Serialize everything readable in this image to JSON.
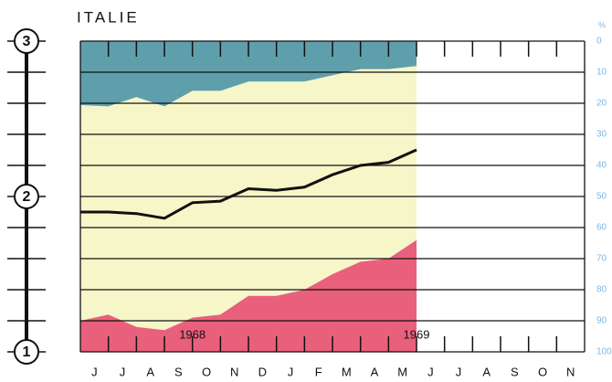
{
  "chart_data": {
    "type": "area",
    "title": "ITALIE",
    "y_unit": "%",
    "categories": [
      "J",
      "J",
      "A",
      "S",
      "O",
      "N",
      "D",
      "J",
      "F",
      "M",
      "A",
      "M",
      "J",
      "J",
      "A",
      "S",
      "O",
      "N"
    ],
    "x": [
      0,
      1,
      2,
      3,
      4,
      5,
      6,
      7,
      8,
      9,
      10,
      11,
      12
    ],
    "xlim": [
      0,
      18
    ],
    "ylim": [
      100,
      0
    ],
    "yticks": [
      0,
      10,
      20,
      30,
      40,
      50,
      60,
      70,
      80,
      90,
      100
    ],
    "grid": true,
    "middle_color": "#f7f6c9",
    "series": [
      {
        "color": "#5f9fab",
        "fill": "top",
        "values": [
          20.6,
          21,
          18,
          21,
          16,
          16,
          13,
          13,
          13,
          11,
          9,
          9,
          8
        ]
      },
      {
        "color": "#e9607c",
        "fill": "bottom",
        "values": [
          90,
          88,
          92,
          93,
          89,
          88,
          82,
          82,
          80,
          75,
          71,
          70,
          64
        ]
      },
      {
        "color": "#111111",
        "fill": "none",
        "values": [
          55,
          55,
          55.5,
          57,
          52,
          51.5,
          47.5,
          48,
          47,
          43,
          40,
          39,
          35
        ]
      }
    ],
    "annotations": [
      {
        "text": "1968",
        "x": 4
      },
      {
        "text": "1969",
        "x": 12
      }
    ],
    "left_ticks": [
      {
        "value": 0,
        "label": "3"
      },
      {
        "value": 50,
        "label": "2"
      },
      {
        "value": 100,
        "label": "1"
      }
    ]
  }
}
